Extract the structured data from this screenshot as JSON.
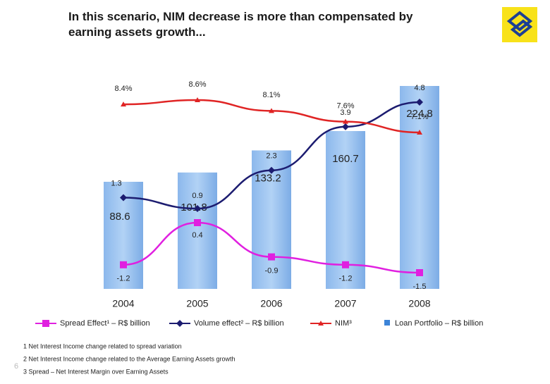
{
  "title": "In this scenario, NIM decrease is more than compensated by earning assets growth...",
  "chart_data": {
    "type": "combo",
    "categories": [
      "2004",
      "2005",
      "2006",
      "2007",
      "2008"
    ],
    "series": [
      {
        "name": "Spread Effect¹ – R$ billion",
        "type": "line",
        "color": "#e020e0",
        "marker": "square",
        "values": [
          -1.2,
          0.4,
          -0.9,
          -1.2,
          -1.5
        ]
      },
      {
        "name": "Volume effect² – R$ billion",
        "type": "line",
        "color": "#1c1c70",
        "marker": "diamond",
        "values": [
          1.3,
          0.9,
          2.3,
          3.9,
          4.8
        ]
      },
      {
        "name": "NIM³",
        "type": "line",
        "color": "#e02424",
        "marker": "triangle",
        "values": [
          8.4,
          8.6,
          8.1,
          7.6,
          7.1
        ],
        "value_labels": [
          "8.4%",
          "8.6%",
          "8.1%",
          "7.6%",
          "7.1%"
        ]
      },
      {
        "name": "Loan Portfolio – R$ billion",
        "type": "bar",
        "color": "#3c84d8",
        "values": [
          88.6,
          101.8,
          133.2,
          160.7,
          224.8
        ]
      }
    ]
  },
  "footnotes": [
    "1 Net Interest Income change related to spread variation",
    "2 Net Interest Income change related to the Average Earning Assets growth",
    "3 Spread – Net Interest Margin over Earning Assets"
  ],
  "page_number": "6"
}
